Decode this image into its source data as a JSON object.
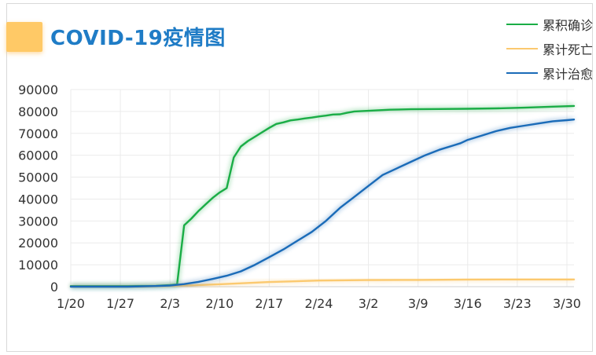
{
  "title": "COVID-19疫情图",
  "colors": {
    "confirmed": "#1aad46",
    "deaths": "#fbc96f",
    "recovered": "#1a6bb8",
    "title": "#1f7cc6",
    "flag": "#ffc966",
    "grid": "#ebebeb"
  },
  "chart_data": {
    "type": "line",
    "xlim": [
      0,
      71
    ],
    "ylim": [
      0,
      90000
    ],
    "y_ticks": [
      0,
      10000,
      20000,
      30000,
      40000,
      50000,
      60000,
      70000,
      80000,
      90000
    ],
    "x_ticks": [
      {
        "pos": 0,
        "label": "1/20"
      },
      {
        "pos": 7,
        "label": "1/27"
      },
      {
        "pos": 14,
        "label": "2/3"
      },
      {
        "pos": 21,
        "label": "2/10"
      },
      {
        "pos": 28,
        "label": "2/17"
      },
      {
        "pos": 35,
        "label": "2/24"
      },
      {
        "pos": 42,
        "label": "3/2"
      },
      {
        "pos": 49,
        "label": "3/9"
      },
      {
        "pos": 56,
        "label": "3/16"
      },
      {
        "pos": 63,
        "label": "3/23"
      },
      {
        "pos": 70,
        "label": "3/30"
      }
    ],
    "legend_position": "top-right",
    "grid": true,
    "series": [
      {
        "name": "累积确诊",
        "color_key": "confirmed",
        "points": [
          [
            0,
            300
          ],
          [
            8,
            300
          ],
          [
            12,
            400
          ],
          [
            14,
            700
          ],
          [
            15,
            1000
          ],
          [
            16,
            28000
          ],
          [
            17,
            31000
          ],
          [
            18,
            34500
          ],
          [
            19,
            37500
          ],
          [
            20,
            40500
          ],
          [
            21,
            43000
          ],
          [
            22,
            45000
          ],
          [
            23,
            59000
          ],
          [
            24,
            64000
          ],
          [
            25,
            66500
          ],
          [
            26,
            68500
          ],
          [
            27,
            70500
          ],
          [
            28,
            72500
          ],
          [
            29,
            74300
          ],
          [
            30,
            75000
          ],
          [
            31,
            75900
          ],
          [
            32,
            76300
          ],
          [
            33,
            76800
          ],
          [
            34,
            77200
          ],
          [
            35,
            77700
          ],
          [
            36,
            78100
          ],
          [
            37,
            78600
          ],
          [
            38,
            78700
          ],
          [
            39,
            79400
          ],
          [
            40,
            80000
          ],
          [
            42,
            80300
          ],
          [
            45,
            80800
          ],
          [
            48,
            81000
          ],
          [
            52,
            81100
          ],
          [
            56,
            81200
          ],
          [
            60,
            81400
          ],
          [
            64,
            81700
          ],
          [
            68,
            82200
          ],
          [
            71,
            82500
          ]
        ]
      },
      {
        "name": "累计死亡",
        "color_key": "deaths",
        "points": [
          [
            0,
            0
          ],
          [
            10,
            50
          ],
          [
            14,
            400
          ],
          [
            17,
            600
          ],
          [
            21,
            1100
          ],
          [
            25,
            1700
          ],
          [
            28,
            2100
          ],
          [
            31,
            2400
          ],
          [
            35,
            2800
          ],
          [
            38,
            2900
          ],
          [
            42,
            3000
          ],
          [
            49,
            3100
          ],
          [
            56,
            3250
          ],
          [
            63,
            3300
          ],
          [
            71,
            3300
          ]
        ]
      },
      {
        "name": "累计治愈",
        "color_key": "recovered",
        "points": [
          [
            0,
            0
          ],
          [
            8,
            0
          ],
          [
            12,
            300
          ],
          [
            14,
            500
          ],
          [
            16,
            1200
          ],
          [
            18,
            2200
          ],
          [
            20,
            3500
          ],
          [
            22,
            5000
          ],
          [
            24,
            7000
          ],
          [
            26,
            10000
          ],
          [
            28,
            13500
          ],
          [
            30,
            17000
          ],
          [
            32,
            21000
          ],
          [
            34,
            25000
          ],
          [
            36,
            30000
          ],
          [
            38,
            36000
          ],
          [
            40,
            41000
          ],
          [
            42,
            46000
          ],
          [
            44,
            51000
          ],
          [
            46,
            54000
          ],
          [
            48,
            57000
          ],
          [
            50,
            60000
          ],
          [
            52,
            62500
          ],
          [
            54,
            64500
          ],
          [
            55,
            65500
          ],
          [
            56,
            67000
          ],
          [
            58,
            69000
          ],
          [
            60,
            71000
          ],
          [
            62,
            72500
          ],
          [
            64,
            73500
          ],
          [
            66,
            74500
          ],
          [
            68,
            75500
          ],
          [
            70,
            76000
          ],
          [
            71,
            76300
          ]
        ]
      }
    ]
  }
}
